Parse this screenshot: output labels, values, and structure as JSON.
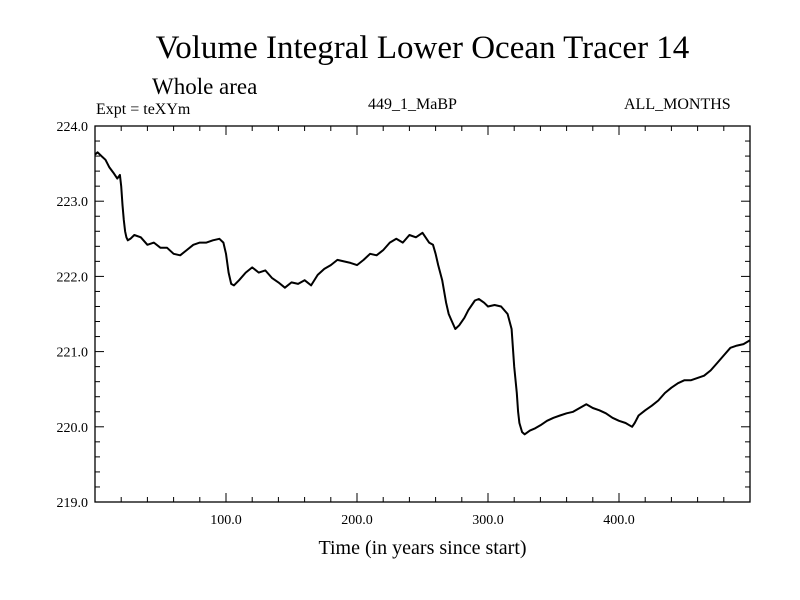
{
  "chart_data": {
    "type": "line",
    "title": "Volume Integral Lower Ocean Tracer 14",
    "subtitle": "Whole area",
    "annotations": {
      "experiment": "Expt = teXYm",
      "period": "449_1_MaBP",
      "months": "ALL_MONTHS"
    },
    "xlabel": "Time (in years since start)",
    "ylabel": "",
    "xlim": [
      0,
      500
    ],
    "ylim": [
      219.0,
      224.0
    ],
    "x_ticks": [
      100,
      200,
      300,
      400
    ],
    "x_tick_labels": [
      "100.0",
      "200.0",
      "300.0",
      "400.0"
    ],
    "y_ticks": [
      219.0,
      220.0,
      221.0,
      222.0,
      223.0,
      224.0
    ],
    "y_tick_labels": [
      "219.0",
      "220.0",
      "221.0",
      "222.0",
      "223.0",
      "224.0"
    ],
    "grid": false,
    "series": [
      {
        "x": [
          0,
          2,
          5,
          8,
          11,
          14,
          17,
          19,
          20,
          21,
          22,
          23,
          24,
          25,
          27,
          30,
          35,
          40,
          45,
          50,
          55,
          60,
          65,
          70,
          75,
          80,
          85,
          90,
          95,
          98,
          100,
          102,
          104,
          106,
          110,
          115,
          120,
          125,
          130,
          135,
          140,
          145,
          150,
          155,
          160,
          165,
          170,
          175,
          180,
          185,
          190,
          195,
          200,
          205,
          210,
          215,
          220,
          225,
          230,
          235,
          240,
          245,
          250,
          255,
          258,
          260,
          262,
          265,
          268,
          270,
          272,
          275,
          278,
          282,
          285,
          290,
          293,
          297,
          300,
          305,
          310,
          315,
          318,
          320,
          322,
          323,
          324,
          326,
          328,
          332,
          336,
          340,
          345,
          350,
          355,
          360,
          365,
          370,
          375,
          380,
          385,
          390,
          395,
          400,
          405,
          408,
          410,
          412,
          415,
          420,
          425,
          430,
          435,
          440,
          445,
          450,
          455,
          460,
          465,
          470,
          475,
          480,
          485,
          490,
          495,
          500
        ],
        "y": [
          223.62,
          223.65,
          223.6,
          223.55,
          223.45,
          223.38,
          223.3,
          223.35,
          223.2,
          222.95,
          222.75,
          222.6,
          222.52,
          222.48,
          222.5,
          222.55,
          222.52,
          222.42,
          222.45,
          222.38,
          222.38,
          222.3,
          222.28,
          222.35,
          222.42,
          222.45,
          222.45,
          222.48,
          222.5,
          222.45,
          222.3,
          222.05,
          221.9,
          221.88,
          221.95,
          222.05,
          222.12,
          222.05,
          222.08,
          221.98,
          221.92,
          221.85,
          221.92,
          221.9,
          221.95,
          221.88,
          222.02,
          222.1,
          222.15,
          222.22,
          222.2,
          222.18,
          222.15,
          222.22,
          222.3,
          222.28,
          222.35,
          222.45,
          222.5,
          222.45,
          222.55,
          222.52,
          222.58,
          222.45,
          222.42,
          222.3,
          222.15,
          221.95,
          221.65,
          221.5,
          221.42,
          221.3,
          221.35,
          221.45,
          221.55,
          221.68,
          221.7,
          221.65,
          221.6,
          221.62,
          221.6,
          221.5,
          221.3,
          220.8,
          220.45,
          220.2,
          220.05,
          219.93,
          219.9,
          219.95,
          219.98,
          220.02,
          220.08,
          220.12,
          220.15,
          220.18,
          220.2,
          220.25,
          220.3,
          220.25,
          220.22,
          220.18,
          220.12,
          220.08,
          220.05,
          220.02,
          220.0,
          220.05,
          220.15,
          220.22,
          220.28,
          220.35,
          220.45,
          220.52,
          220.58,
          220.62,
          220.62,
          220.65,
          220.68,
          220.75,
          220.85,
          220.95,
          221.05,
          221.08,
          221.1,
          221.15
        ]
      }
    ]
  }
}
